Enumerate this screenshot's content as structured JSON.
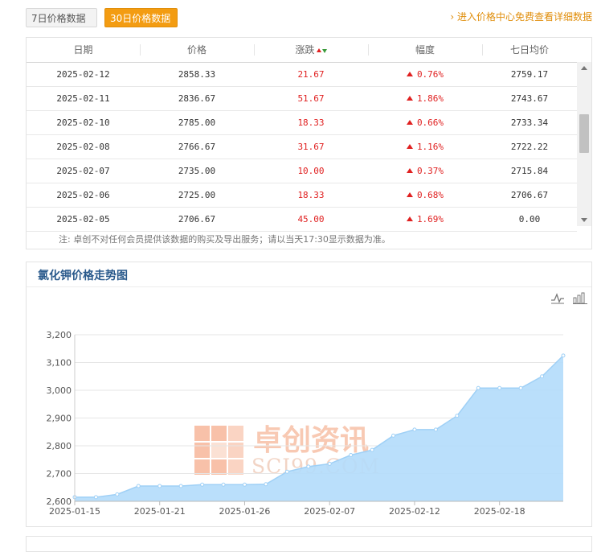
{
  "tabs": {
    "tab7": "7日价格数据",
    "tab30": "30日价格数据"
  },
  "more_link": "进入价格中心免费查看详细数据",
  "table": {
    "headers": [
      "日期",
      "价格",
      "涨跌",
      "幅度",
      "七日均价"
    ],
    "rows": [
      {
        "date": "2025-02-12",
        "price": "2858.33",
        "change": "21.67",
        "pct": "0.76%",
        "avg7": "2759.17"
      },
      {
        "date": "2025-02-11",
        "price": "2836.67",
        "change": "51.67",
        "pct": "1.86%",
        "avg7": "2743.67"
      },
      {
        "date": "2025-02-10",
        "price": "2785.00",
        "change": "18.33",
        "pct": "0.66%",
        "avg7": "2733.34"
      },
      {
        "date": "2025-02-08",
        "price": "2766.67",
        "change": "31.67",
        "pct": "1.16%",
        "avg7": "2722.22"
      },
      {
        "date": "2025-02-07",
        "price": "2735.00",
        "change": "10.00",
        "pct": "0.37%",
        "avg7": "2715.84"
      },
      {
        "date": "2025-02-06",
        "price": "2725.00",
        "change": "18.33",
        "pct": "0.68%",
        "avg7": "2706.67"
      },
      {
        "date": "2025-02-05",
        "price": "2706.67",
        "change": "45.00",
        "pct": "1.69%",
        "avg7": "0.00"
      }
    ]
  },
  "note": "注:  卓创不对任何会员提供该数据的购买及导出服务；请以当天17:30显示数据为准。",
  "watermark": {
    "cn": "卓创资讯",
    "en": "SCI99.COM"
  },
  "colors": {
    "accent": "#f39c12",
    "up": "#e02020",
    "area_fill": "#b3dcfb",
    "area_line": "#9fd0f6",
    "title": "#2a5a8c"
  },
  "chart_data": {
    "type": "area",
    "title": "氯化钾价格走势图",
    "xlabel": "",
    "ylabel": "",
    "ylim": [
      2600,
      3200
    ],
    "yticks": [
      2600,
      2700,
      2800,
      2900,
      3000,
      3100,
      3200
    ],
    "ytick_labels": [
      "2,600",
      "2,700",
      "2,800",
      "2,900",
      "3,000",
      "3,100",
      "3,200"
    ],
    "grid": true,
    "x": [
      "2025-01-15",
      "2025-01-16",
      "2025-01-17",
      "2025-01-20",
      "2025-01-21",
      "2025-01-22",
      "2025-01-23",
      "2025-01-24",
      "2025-01-26",
      "2025-01-27",
      "2025-02-05",
      "2025-02-06",
      "2025-02-07",
      "2025-02-08",
      "2025-02-10",
      "2025-02-11",
      "2025-02-12",
      "2025-02-13",
      "2025-02-14",
      "2025-02-17",
      "2025-02-18",
      "2025-02-19",
      "2025-02-20",
      "2025-02-21"
    ],
    "xtick_labels": [
      "2025-01-15",
      "2025-01-21",
      "2025-01-26",
      "2025-02-07",
      "2025-02-12",
      "2025-02-18"
    ],
    "values": [
      2615,
      2615,
      2625,
      2655,
      2655,
      2655,
      2660,
      2660,
      2660,
      2661.67,
      2706.67,
      2725,
      2735,
      2766.67,
      2785,
      2836.67,
      2858.33,
      2858.33,
      2908,
      3008,
      3008,
      3008,
      3050,
      3125
    ]
  }
}
